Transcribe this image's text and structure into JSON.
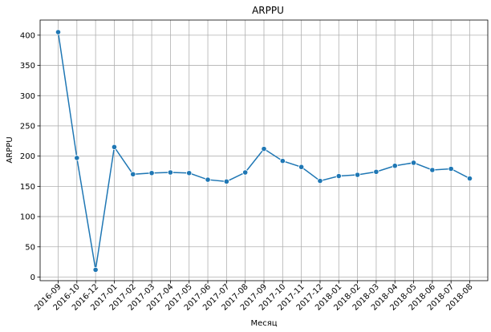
{
  "chart_data": {
    "type": "line",
    "title": "ARPPU",
    "xlabel": "Месяц",
    "ylabel": "ARPPU",
    "categories": [
      "2016-09",
      "2016-10",
      "2016-12",
      "2017-01",
      "2017-02",
      "2017-03",
      "2017-04",
      "2017-05",
      "2017-06",
      "2017-07",
      "2017-08",
      "2017-09",
      "2017-10",
      "2017-11",
      "2017-12",
      "2018-01",
      "2018-02",
      "2018-03",
      "2018-04",
      "2018-05",
      "2018-06",
      "2018-07",
      "2018-08"
    ],
    "series": [
      {
        "values": [
          405,
          197,
          12,
          215,
          170,
          172,
          173,
          172,
          161,
          158,
          173,
          212,
          192,
          182,
          159,
          167,
          169,
          174,
          184,
          189,
          177,
          179,
          163
        ]
      }
    ],
    "ylim": [
      -6,
      425
    ],
    "yticks": [
      "0",
      "50",
      "100",
      "150",
      "200",
      "250",
      "300",
      "350",
      "400"
    ],
    "grid": true,
    "marker": "circle",
    "color": "#1f77b4"
  }
}
